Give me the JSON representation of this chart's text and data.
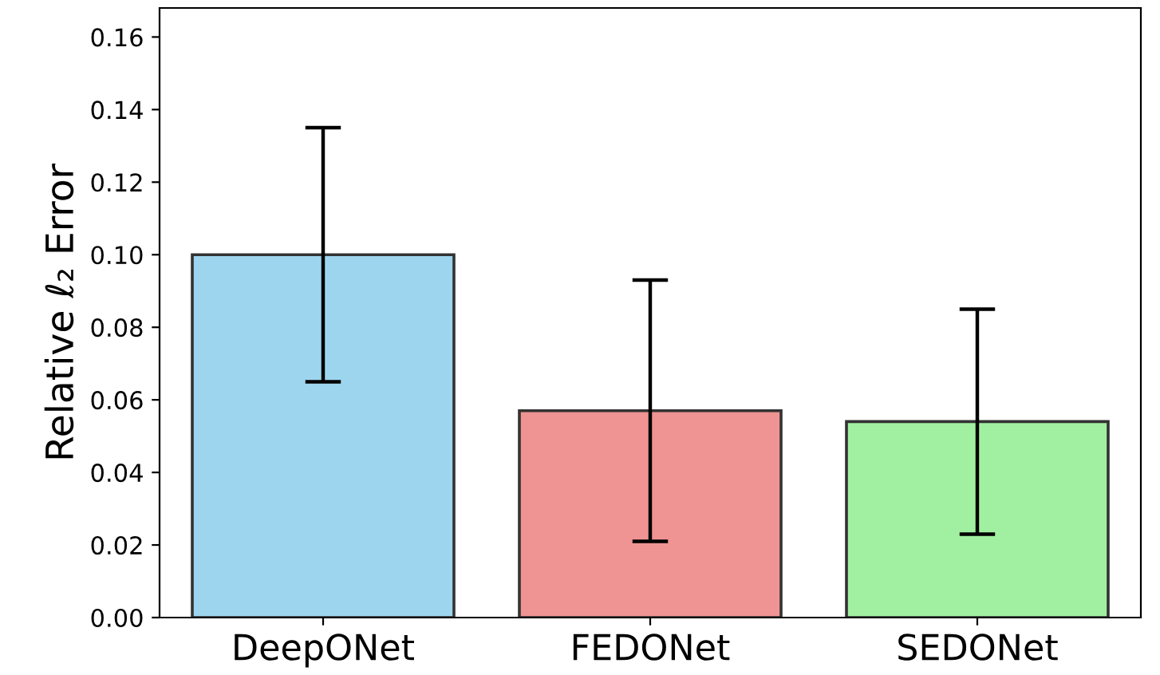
{
  "chart_data": {
    "type": "bar",
    "ylabel": "Relative ℓ₂ Error",
    "categories": [
      "DeepONet",
      "FEDONet",
      "SEDONet"
    ],
    "values": [
      0.1,
      0.057,
      0.054
    ],
    "errors": [
      0.035,
      0.036,
      0.031
    ],
    "colors": [
      "#9dd5ee",
      "#f09393",
      "#a1f0a1"
    ],
    "ylim": [
      0,
      0.168
    ],
    "yticks": [
      {
        "value": 0,
        "label": "0.00"
      },
      {
        "value": 0.02,
        "label": "0.02"
      },
      {
        "value": 0.04,
        "label": "0.04"
      },
      {
        "value": 0.06,
        "label": "0.06"
      },
      {
        "value": 0.08,
        "label": "0.08"
      },
      {
        "value": 0.1,
        "label": "0.10"
      },
      {
        "value": 0.12,
        "label": "0.12"
      },
      {
        "value": 0.14,
        "label": "0.14"
      },
      {
        "value": 0.16,
        "label": "0.16"
      }
    ],
    "grid": false,
    "legend": false
  }
}
